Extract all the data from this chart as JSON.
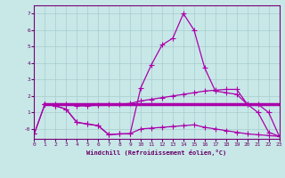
{
  "xlabel": "Windchill (Refroidissement éolien,°C)",
  "xlim": [
    0,
    23
  ],
  "ylim": [
    -0.6,
    7.5
  ],
  "xticks": [
    0,
    1,
    2,
    3,
    4,
    5,
    6,
    7,
    8,
    9,
    10,
    11,
    12,
    13,
    14,
    15,
    16,
    17,
    18,
    19,
    20,
    21,
    22,
    23
  ],
  "yticks": [
    0,
    1,
    2,
    3,
    4,
    5,
    6,
    7
  ],
  "ytick_labels": [
    "-0",
    "1",
    "2",
    "3",
    "4",
    "5",
    "6",
    "7"
  ],
  "bg_color": "#c8e8e8",
  "grid_color": "#a8cccc",
  "line_color": "#aa00aa",
  "curves": [
    {
      "x": [
        0,
        1,
        2,
        3,
        4,
        5,
        6,
        7,
        8,
        9,
        10,
        11,
        12,
        13,
        14,
        15,
        16,
        17,
        18,
        19,
        20,
        21,
        22,
        23
      ],
      "y": [
        -0.3,
        1.5,
        1.4,
        1.2,
        0.4,
        0.3,
        0.2,
        -0.35,
        -0.3,
        -0.3,
        2.5,
        3.9,
        5.1,
        5.5,
        7.0,
        6.0,
        3.7,
        2.3,
        2.2,
        2.1,
        1.5,
        1.0,
        -0.2,
        -0.45
      ],
      "marker": "+",
      "markersize": 4,
      "linewidth": 0.9
    },
    {
      "x": [
        1,
        2,
        3,
        4,
        5,
        6,
        7,
        8,
        9,
        10,
        11,
        12,
        13,
        14,
        15,
        16,
        17,
        18,
        19,
        20,
        21,
        22,
        23
      ],
      "y": [
        1.5,
        1.5,
        1.5,
        1.4,
        1.4,
        1.45,
        1.5,
        1.5,
        1.55,
        1.7,
        1.8,
        1.9,
        2.0,
        2.1,
        2.2,
        2.3,
        2.35,
        2.4,
        2.4,
        1.5,
        1.5,
        1.0,
        -0.45
      ],
      "marker": "+",
      "markersize": 4,
      "linewidth": 0.9
    },
    {
      "x": [
        1,
        23
      ],
      "y": [
        1.5,
        1.5
      ],
      "marker": null,
      "markersize": 0,
      "linewidth": 2.5
    },
    {
      "x": [
        0,
        1,
        2,
        3,
        4,
        5,
        6,
        7,
        8,
        9,
        10,
        11,
        12,
        13,
        14,
        15,
        16,
        17,
        18,
        19,
        20,
        21,
        22,
        23
      ],
      "y": [
        -0.3,
        1.5,
        1.4,
        1.2,
        0.4,
        0.3,
        0.2,
        -0.35,
        -0.3,
        -0.28,
        0.0,
        0.05,
        0.1,
        0.15,
        0.2,
        0.25,
        0.1,
        0.0,
        -0.1,
        -0.2,
        -0.3,
        -0.35,
        -0.4,
        -0.45
      ],
      "marker": "+",
      "markersize": 4,
      "linewidth": 0.9
    }
  ]
}
